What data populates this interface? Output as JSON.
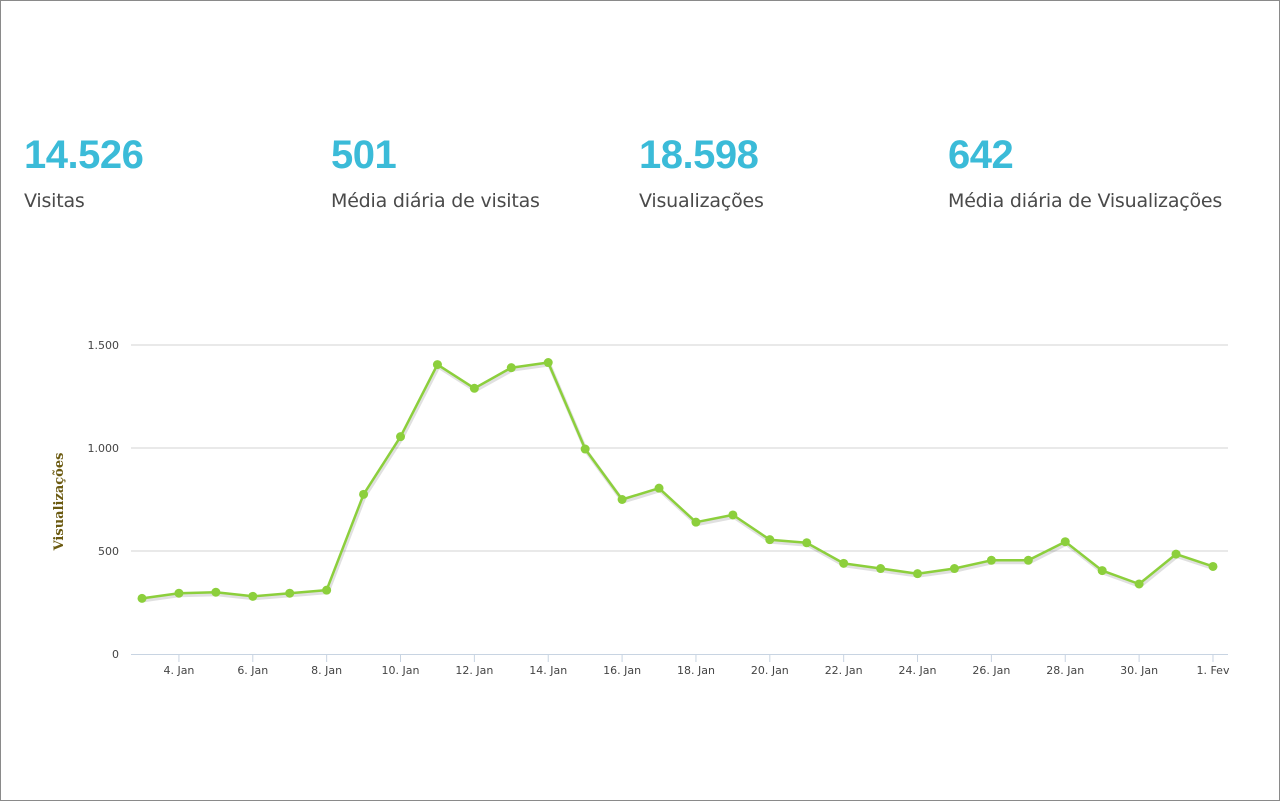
{
  "colors": {
    "accent": "#3bbbd8",
    "line": "#8ccf3c",
    "axis_title": "#6b5a10",
    "grid": "#d3d3d3",
    "axis": "#c8d4e2"
  },
  "stats": [
    {
      "value": "14.526",
      "label": "Visitas"
    },
    {
      "value": "501",
      "label": "Média diária de visitas"
    },
    {
      "value": "18.598",
      "label": "Visualizações"
    },
    {
      "value": "642",
      "label": "Média diária de Visualizações"
    }
  ],
  "chart_data": {
    "type": "line",
    "title": "",
    "xlabel": "",
    "ylabel": "Visualizações",
    "ylim": [
      0,
      1500
    ],
    "yticks": [
      0,
      500,
      1000,
      1500
    ],
    "ytick_labels": [
      "0",
      "500",
      "1.000",
      "1.500"
    ],
    "grid": true,
    "legend": "none",
    "x": [
      "3. Jan",
      "4. Jan",
      "5. Jan",
      "6. Jan",
      "7. Jan",
      "8. Jan",
      "9. Jan",
      "10. Jan",
      "11. Jan",
      "12. Jan",
      "13. Jan",
      "14. Jan",
      "15. Jan",
      "16. Jan",
      "17. Jan",
      "18. Jan",
      "19. Jan",
      "20. Jan",
      "21. Jan",
      "22. Jan",
      "23. Jan",
      "24. Jan",
      "25. Jan",
      "26. Jan",
      "27. Jan",
      "28. Jan",
      "29. Jan",
      "30. Jan",
      "31. Jan",
      "1. Fev"
    ],
    "xtick_labels": [
      "4. Jan",
      "6. Jan",
      "8. Jan",
      "10. Jan",
      "12. Jan",
      "14. Jan",
      "16. Jan",
      "18. Jan",
      "20. Jan",
      "22. Jan",
      "24. Jan",
      "26. Jan",
      "28. Jan",
      "30. Jan",
      "1. Fev"
    ],
    "series": [
      {
        "name": "Visualizações",
        "values": [
          270,
          295,
          300,
          280,
          295,
          310,
          775,
          1055,
          1405,
          1290,
          1390,
          1415,
          995,
          750,
          805,
          640,
          675,
          555,
          540,
          440,
          415,
          390,
          415,
          455,
          455,
          545,
          405,
          340,
          485,
          425
        ]
      }
    ]
  }
}
